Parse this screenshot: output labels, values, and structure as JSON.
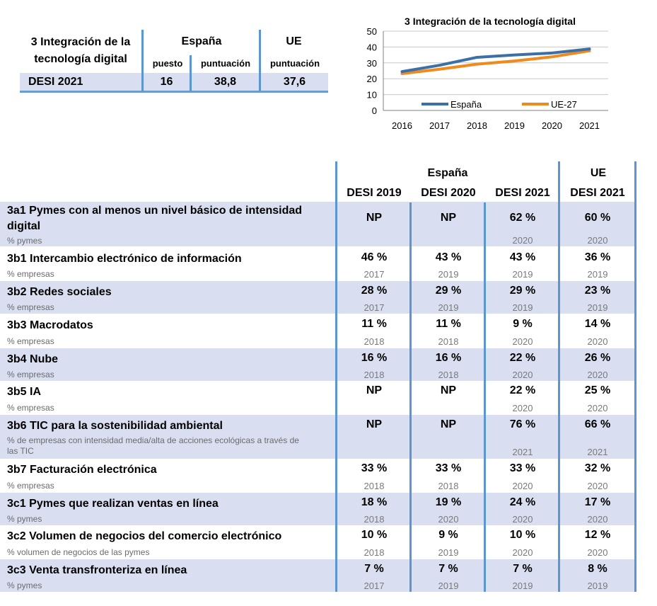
{
  "summary": {
    "title_line1": "3 Integración de la",
    "title_line2": "tecnología digital",
    "spain_label": "España",
    "eu_label": "UE",
    "col_rank": "puesto",
    "col_score": "puntuación",
    "col_eu_score": "puntuación",
    "row_label": "DESI 2021",
    "rank": "16",
    "score": "38,8",
    "eu_score": "37,6"
  },
  "chart_data": {
    "type": "line",
    "title": "3 Integración de la tecnología digital",
    "categories": [
      "2016",
      "2017",
      "2018",
      "2019",
      "2020",
      "2021"
    ],
    "series": [
      {
        "name": "España",
        "color": "#3a6fa8",
        "values": [
          24.5,
          28.5,
          33.5,
          35.0,
          36.2,
          38.8
        ]
      },
      {
        "name": "UE-27",
        "color": "#f08a1c",
        "values": [
          23.2,
          26.0,
          29.2,
          31.2,
          33.8,
          37.6
        ]
      }
    ],
    "ylim": [
      0,
      50
    ],
    "yticks": [
      "0",
      "10",
      "20",
      "30",
      "40",
      "50"
    ],
    "legend_position": "inside-bottom",
    "xlabel": "",
    "ylabel": ""
  },
  "table": {
    "spain_group": "España",
    "eu_group": "UE",
    "col_headers": [
      "DESI 2019",
      "DESI 2020",
      "DESI 2021",
      "DESI 2021"
    ],
    "rows": [
      {
        "title": "3a1 Pymes con al menos un nivel básico de intensidad digital",
        "title_line1": "3a1 Pymes con al menos un nivel básico de intensidad",
        "title_line2": "digital",
        "unit": "% pymes",
        "values": [
          "NP",
          "NP",
          "62 %",
          "60 %"
        ],
        "years": [
          "",
          "",
          "2020",
          "2020"
        ]
      },
      {
        "title": "3b1 Intercambio electrónico de información",
        "unit": "% empresas",
        "values": [
          "46 %",
          "43 %",
          "43 %",
          "36 %"
        ],
        "years": [
          "2017",
          "2019",
          "2019",
          "2019"
        ]
      },
      {
        "title": "3b2 Redes sociales",
        "unit": "% empresas",
        "values": [
          "28 %",
          "29 %",
          "29 %",
          "23 %"
        ],
        "years": [
          "2017",
          "2019",
          "2019",
          "2019"
        ]
      },
      {
        "title": "3b3 Macrodatos",
        "unit": "% empresas",
        "values": [
          "11 %",
          "11 %",
          "9 %",
          "14 %"
        ],
        "years": [
          "2018",
          "2018",
          "2020",
          "2020"
        ]
      },
      {
        "title": "3b4 Nube",
        "unit": "% empresas",
        "values": [
          "16 %",
          "16 %",
          "22 %",
          "26 %"
        ],
        "years": [
          "2018",
          "2018",
          "2020",
          "2020"
        ]
      },
      {
        "title": "3b5 IA",
        "unit": "% empresas",
        "values": [
          "NP",
          "NP",
          "22 %",
          "25 %"
        ],
        "years": [
          "",
          "",
          "2020",
          "2020"
        ]
      },
      {
        "title": "3b6 TIC para la sostenibilidad ambiental",
        "unit": "% de empresas con intensidad media/alta de acciones ecológicas a través de las TIC",
        "unit_line1": "% de empresas con intensidad media/alta de acciones ecológicas a través de",
        "unit_line2": "las TIC",
        "values": [
          "NP",
          "NP",
          "76 %",
          "66 %"
        ],
        "years": [
          "",
          "",
          "2021",
          "2021"
        ]
      },
      {
        "title": "3b7 Facturación electrónica",
        "unit": "% empresas",
        "values": [
          "33 %",
          "33 %",
          "33 %",
          "32 %"
        ],
        "years": [
          "2018",
          "2018",
          "2020",
          "2020"
        ]
      },
      {
        "title": "3c1 Pymes que realizan ventas en línea",
        "unit": "% pymes",
        "values": [
          "18 %",
          "19 %",
          "24 %",
          "17 %"
        ],
        "years": [
          "2018",
          "2020",
          "2020",
          "2020"
        ]
      },
      {
        "title": "3c2 Volumen de negocios del comercio electrónico",
        "unit": "% volumen de negocios de las pymes",
        "values": [
          "10 %",
          "9 %",
          "10 %",
          "12 %"
        ],
        "years": [
          "2018",
          "2019",
          "2020",
          "2020"
        ]
      },
      {
        "title": "3c3 Venta transfronteriza en línea",
        "unit": "% pymes",
        "values": [
          "7 %",
          "7 %",
          "7 %",
          "8 %"
        ],
        "years": [
          "2017",
          "2019",
          "2019",
          "2019"
        ]
      }
    ]
  }
}
